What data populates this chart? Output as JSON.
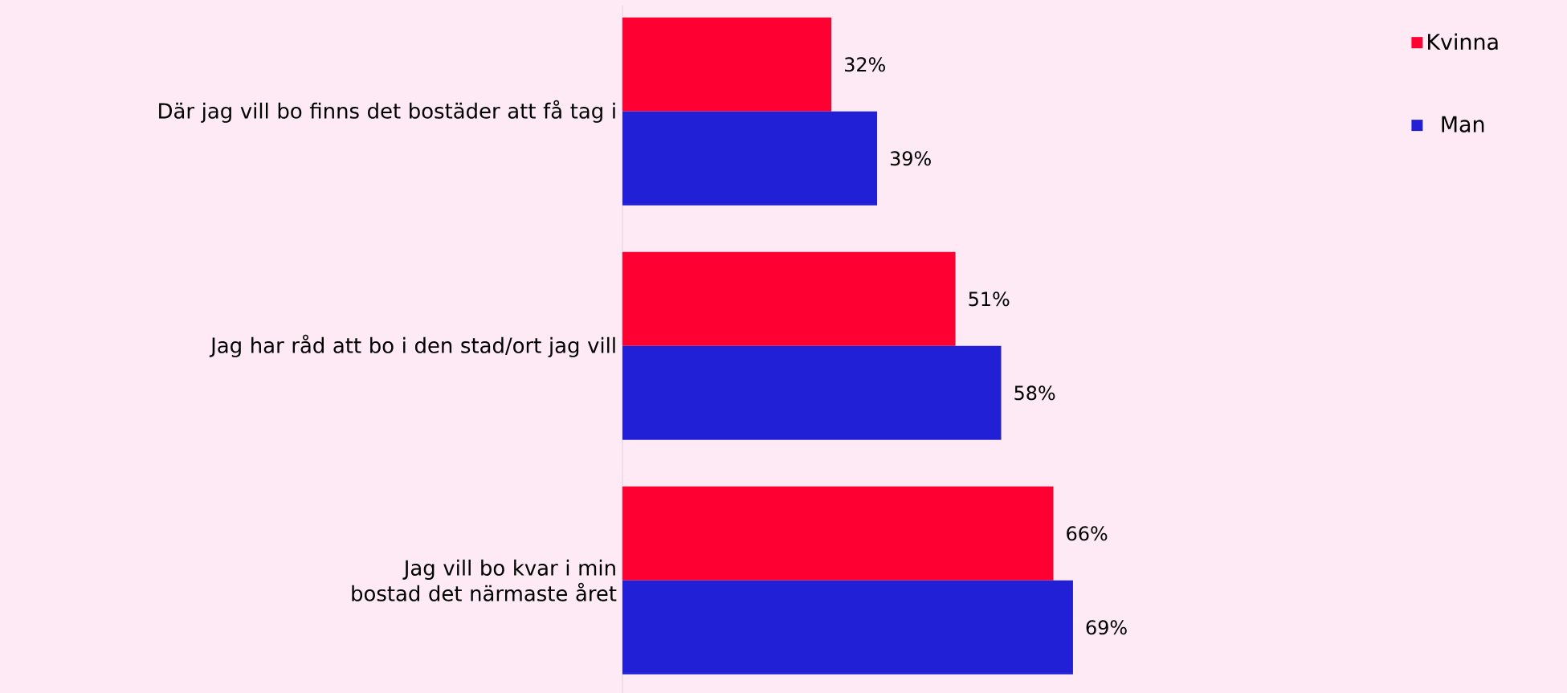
{
  "chart_data": {
    "type": "bar",
    "orientation": "horizontal",
    "categories": [
      "Där jag vill bo finns det bostäder att få tag i",
      "Jag har råd att bo i den stad/ort jag vill",
      "Jag vill bo kvar i min bostad det närmaste året"
    ],
    "series": [
      {
        "name": "Kvinna",
        "color": "#ff0033",
        "values": [
          32,
          51,
          66
        ],
        "value_labels": [
          "32%",
          "51%",
          "66%"
        ]
      },
      {
        "name": "Man",
        "color": "#2220d6",
        "values": [
          39,
          58,
          69
        ],
        "value_labels": [
          "39%",
          "58%",
          "69%"
        ]
      }
    ],
    "legend": "top right"
  }
}
